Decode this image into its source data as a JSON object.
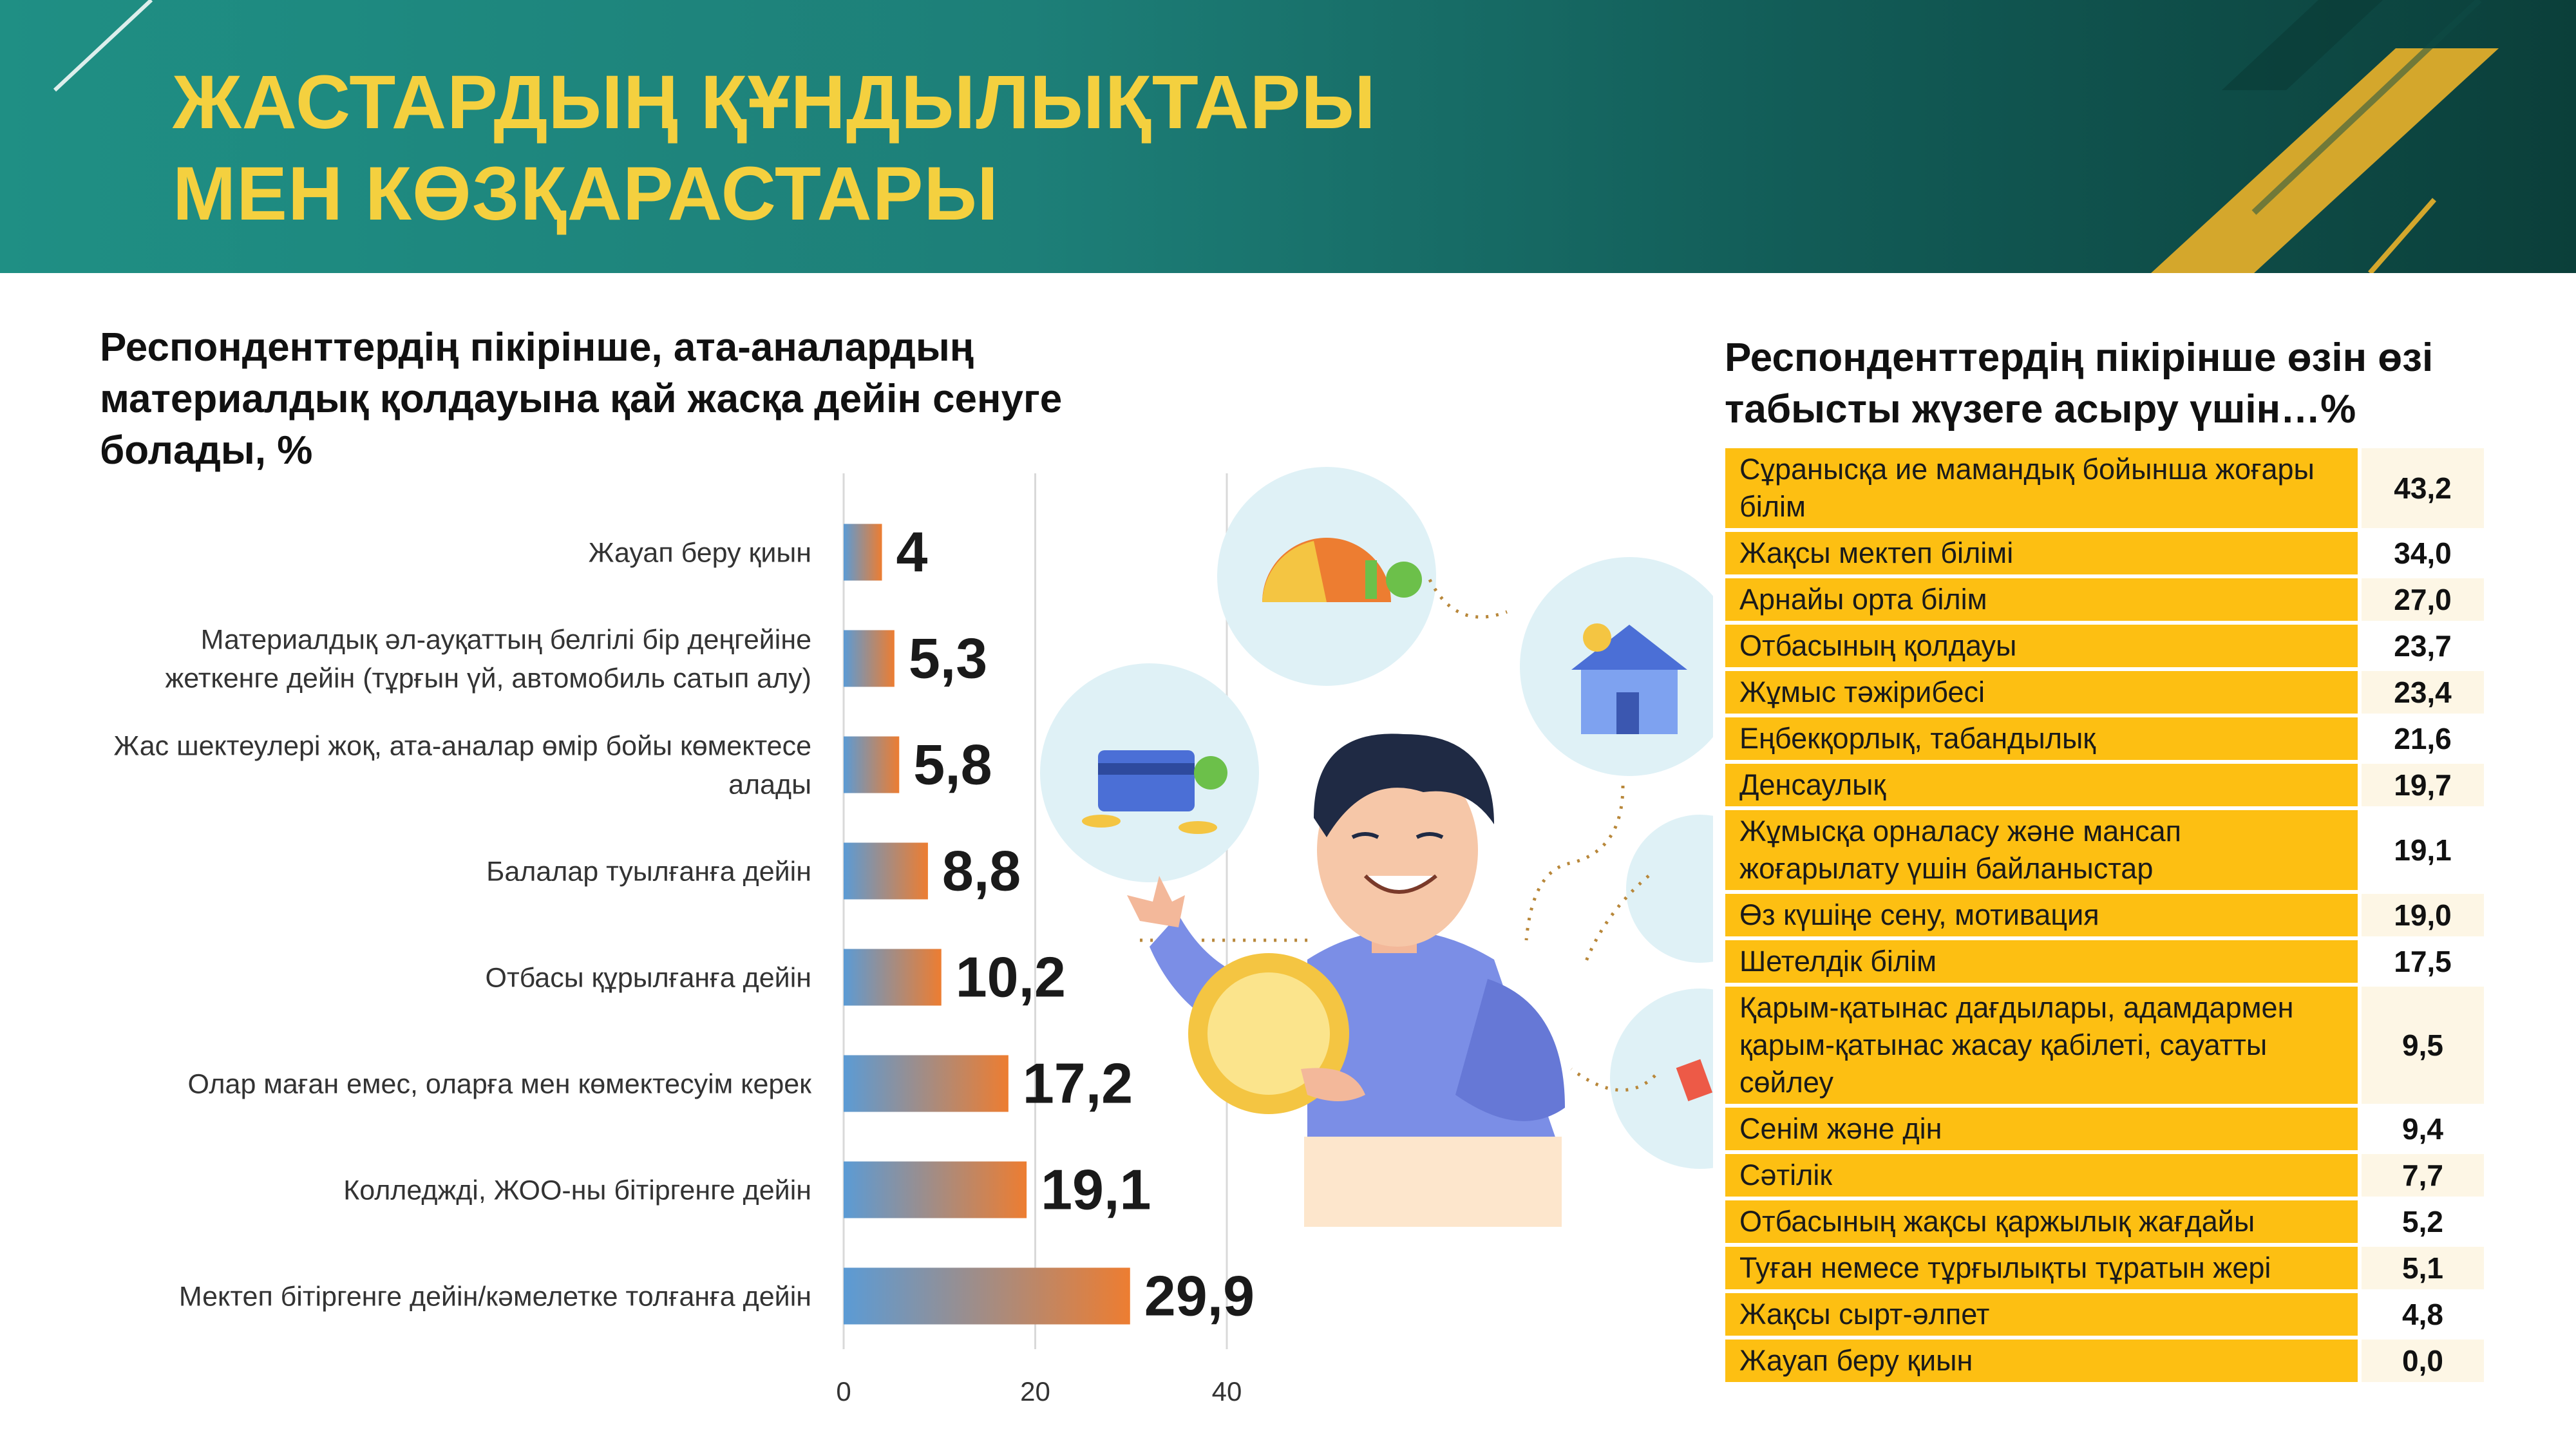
{
  "header": {
    "title_line1": "ЖАСТАРДЫҢ ҚҰНДЫЛЫҚТАРЫ",
    "title_line2": "МЕН КӨЗҚАРАСТАРЫ"
  },
  "left_chart_title": "Респонденттердің пікірінше, ата-аналардың материалдық қолдауына қай жасқа дейін сенуге болады, %",
  "chart_data": [
    {
      "type": "bar",
      "orientation": "horizontal",
      "title": "Респонденттердің пікірінше, ата-аналардың материалдық қолдауына қай жасқа дейін сенуге болады, %",
      "categories": [
        "Жауап беру қиын",
        "Материалдық әл-ауқаттың белгілі бір деңгейіне жеткенге дейін (тұрғын үй, автомобиль сатып алу)",
        "Жас шектеулері жоқ, ата-аналар өмір бойы көмектесе алады",
        "Балалар туылғанға дейін",
        "Отбасы құрылғанға дейін",
        "Олар маған емес, оларға мен көмектесуім керек",
        "Колледжді, ЖОО-ны бітіргенге дейін",
        "Мектеп бітіргенге дейін/кәмелетке толғанға дейін"
      ],
      "category_lines": [
        [
          "Жауап беру қиын"
        ],
        [
          "Материалдық әл-ауқаттың белгілі бір деңгейіне",
          "жеткенге дейін (тұрғын үй, автомобиль сатып алу)"
        ],
        [
          "Жас шектеулері жоқ, ата-аналар өмір бойы көмектесе",
          "алады"
        ],
        [
          "Балалар туылғанға дейін"
        ],
        [
          "Отбасы құрылғанға дейін"
        ],
        [
          "Олар маған емес, оларға мен көмектесуім керек"
        ],
        [
          "Колледжді, ЖОО-ны бітіргенге дейін"
        ],
        [
          "Мектеп бітіргенге дейін/кәмелетке толғанға дейін"
        ]
      ],
      "values": [
        4,
        5.3,
        5.8,
        8.8,
        10.2,
        17.2,
        19.1,
        29.9
      ],
      "value_labels": [
        "4",
        "5,3",
        "5,8",
        "8,8",
        "10,2",
        "17,2",
        "19,1",
        "29,9"
      ],
      "xlim": [
        0,
        40
      ],
      "xticks": [
        0,
        20,
        40
      ],
      "xtick_labels": [
        "0",
        "20",
        "40"
      ],
      "grid": true,
      "bar_gradient": [
        "#5b9bd5",
        "#ed7d31"
      ]
    },
    {
      "type": "table",
      "title": "Респонденттердің пікірінше өзін өзі табысты жүзеге асыру үшін…%",
      "rows": [
        {
          "item": "Сұранысқа ие мамандық бойынша жоғары білім",
          "value": "43,2"
        },
        {
          "item": "Жақсы мектеп білімі",
          "value": "34,0"
        },
        {
          "item": "Арнайы орта білім",
          "value": "27,0"
        },
        {
          "item": "Отбасының қолдауы",
          "value": "23,7"
        },
        {
          "item": "Жұмыс тәжірибесі",
          "value": "23,4"
        },
        {
          "item": "Еңбекқорлық, табандылық",
          "value": "21,6"
        },
        {
          "item": "Денсаулық",
          "value": "19,7"
        },
        {
          "item": "Жұмысқа орналасу және мансап жоғарылату үшін байланыстар",
          "value": "19,1"
        },
        {
          "item": "Өз күшіңе сену, мотивация",
          "value": "19,0"
        },
        {
          "item": "Шетелдік білім",
          "value": "17,5"
        },
        {
          "item": "Қарым-қатынас дағдылары, адамдармен қарым-қатынас жасау қабілеті, сауатты сөйлеу",
          "value": "9,5"
        },
        {
          "item": "Сенім және дін",
          "value": "9,4"
        },
        {
          "item": "Сәтілік",
          "value": "7,7"
        },
        {
          "item": "Отбасының жақсы қаржылық жағдайы",
          "value": "5,2"
        },
        {
          "item": "Туған немесе тұрғылықты тұратын жері",
          "value": "5,1"
        },
        {
          "item": "Жақсы сырт-әлпет",
          "value": "4,8"
        },
        {
          "item": "Жауап беру қиын",
          "value": "0,0"
        }
      ],
      "colors": {
        "item_bg": "#fdbf12",
        "value_bg": "#fdf6e5"
      }
    }
  ],
  "colors": {
    "header_teal": "#1f8f84",
    "title_yellow": "#f4d03f",
    "gold_accent": "#d4a72c",
    "circle_bg": "#dff1f6"
  }
}
